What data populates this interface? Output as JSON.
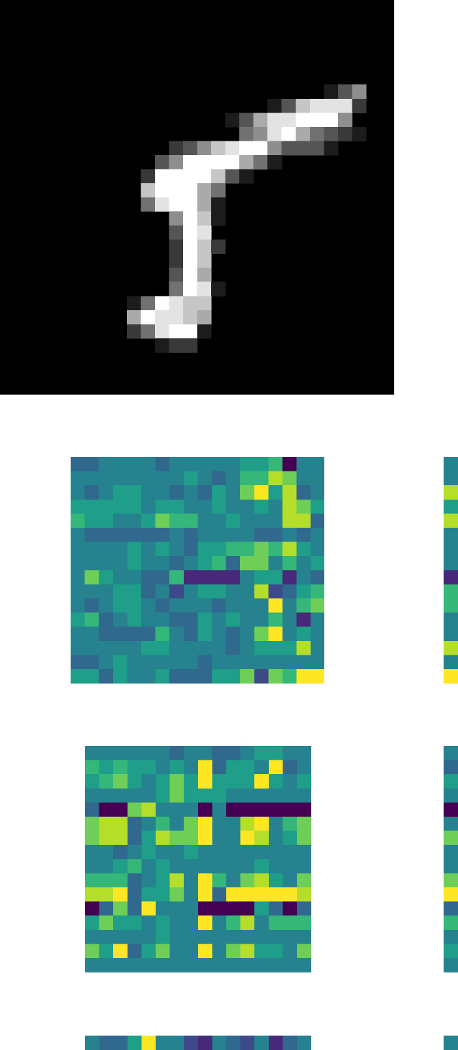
{
  "figure": {
    "digit_image": {
      "colormap": "gray",
      "rows": 28,
      "cols": 28,
      "pixels": [
        "0000000000000000000000000000",
        "0000000000000000000000000000",
        "0000000000000000000000000000",
        "0000000000000000000000000000",
        "0000000000000000000000000000",
        "0000000000000000000000000000",
        "0000000000000000000000013500",
        "0000000000000000000137888200",
        "0000000000000000136889995000",
        "0000000000000000045896432100",
        "0000000000002357899533310000",
        "0000000000035999964100000000",
        "0000000000299997310000000000",
        "0000000000799964000000000000",
        "0000000000489961000000000000",
        "0000000000005971000000000000",
        "0000000000003980000000000000",
        "0000000000002972000000000000",
        "0000000000002970000000000000",
        "0000000000003960000000000000",
        "0000000000004981000000000000",
        "0000000001498770000000000000",
        "0000000006988760000000000000",
        "0000000002489910000000000000",
        "0000000000012200000000000000",
        "0000000000000000000000000000",
        "0000000000000000000000000000",
        "0000000000000000000000000000"
      ]
    },
    "feature_maps": {
      "colormap": "viridis",
      "palette": [
        "#440154",
        "#482878",
        "#3e4989",
        "#31688e",
        "#26828e",
        "#1f9e89",
        "#35b779",
        "#6ece58",
        "#b5de2b",
        "#fde725"
      ],
      "maps": [
        {
          "rows": 16,
          "cols": 18,
          "cells": [
            "334444344444556044",
            "444444445434668744",
            "434554434354795834",
            "555554554454454875",
            "655445766445444883",
            "433333343444433434",
            "444454543556676854",
            "444454434563774645",
            "475443361111455143",
            "444553424554482356",
            "434554344434449467",
            "563454433545446414",
            "443333643543479454",
            "444445544443455584",
            "334544444344444444",
            "553544533355727699"
          ]
        },
        {
          "rows": 16,
          "cols": 16,
          "cells": [
            "4444443443345544",
            "6565545493554934",
            "5675457595559545",
            "4444457555444444",
            "3007844404000000",
            "7883464794489467",
            "7883587794498457",
            "4434544544444444",
            "4456454444445444",
            "6663458496478547",
            "8893557493999998",
            "0373944400005303",
            "5755454494684666",
            "4444454444444444",
            "7593574494785547",
            "4444444444444444"
          ]
        },
        {
          "rows": 1,
          "cols": 16,
          "cells": [
            "4335944214324134"
          ]
        }
      ]
    }
  }
}
